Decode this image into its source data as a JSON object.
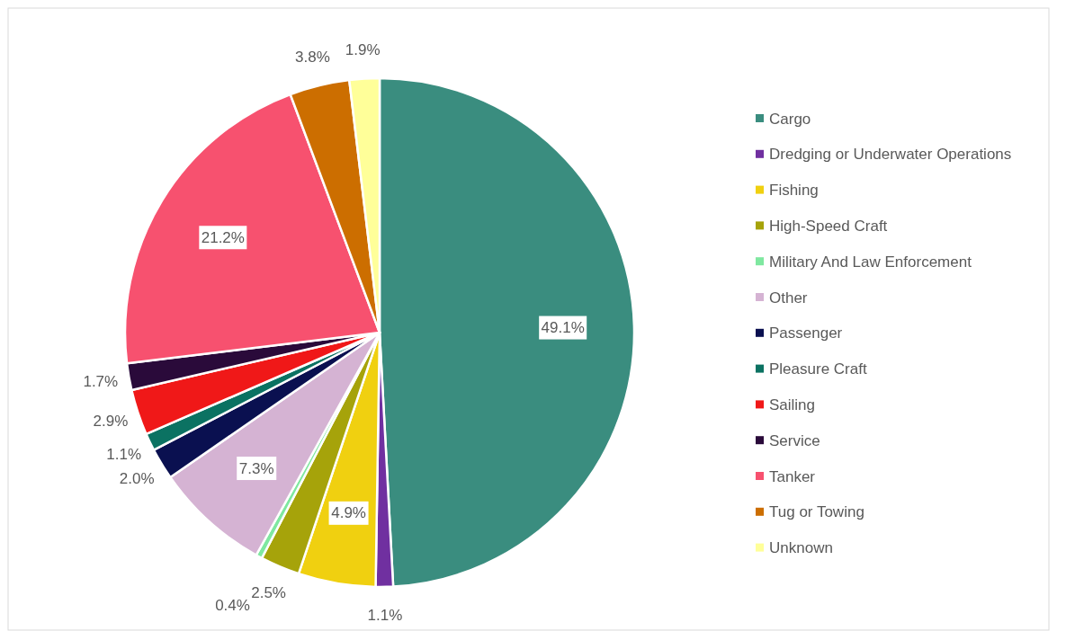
{
  "chart_data": {
    "type": "pie",
    "categories": [
      "Cargo",
      "Dredging or Underwater Operations",
      "Fishing",
      "High-Speed Craft",
      "Military And Law Enforcement",
      "Other",
      "Passenger",
      "Pleasure Craft",
      "Sailing",
      "Service",
      "Tanker",
      "Tug or Towing",
      "Unknown"
    ],
    "values": [
      49.1,
      1.1,
      4.9,
      2.5,
      0.4,
      7.3,
      2.0,
      1.1,
      2.9,
      1.7,
      21.2,
      3.8,
      1.9
    ],
    "value_labels": [
      "49.1%",
      "1.1%",
      "4.9%",
      "2.5%",
      "0.4%",
      "7.3%",
      "2.0%",
      "1.1%",
      "2.9%",
      "1.7%",
      "21.2%",
      "3.8%",
      "1.9%"
    ],
    "colors": [
      "#3a8d7f",
      "#7030a0",
      "#f0d010",
      "#a6a30a",
      "#7fe8a0",
      "#d5b3d3",
      "#0a1050",
      "#0b7262",
      "#f01818",
      "#2a0a3a",
      "#f7516f",
      "#cc6e00",
      "#ffff99"
    ],
    "legend": "right"
  }
}
